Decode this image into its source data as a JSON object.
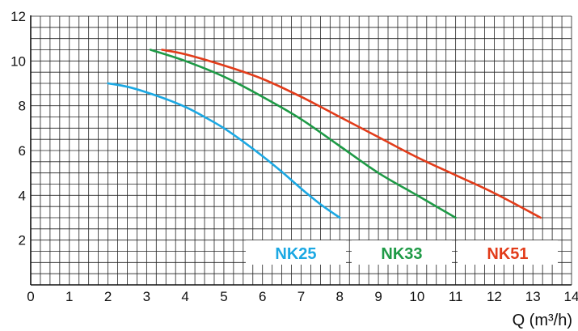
{
  "chart_data": {
    "type": "line",
    "xlabel": "Q (m³/h)",
    "ylabel": "",
    "xlim": [
      0,
      14
    ],
    "ylim": [
      0,
      12
    ],
    "x_ticks": [
      0,
      1,
      2,
      3,
      4,
      5,
      6,
      7,
      8,
      9,
      10,
      11,
      12,
      13,
      14
    ],
    "y_ticks": [
      2,
      4,
      6,
      8,
      10,
      12
    ],
    "minor_grid_x": 0.25,
    "minor_grid_y": 0.5,
    "grid": true,
    "legend": "bottom-right",
    "series": [
      {
        "name": "NK25",
        "color": "#1ba8e3",
        "x": [
          2.0,
          2.5,
          3.0,
          3.5,
          4.0,
          4.5,
          5.0,
          5.5,
          6.0,
          6.5,
          7.0,
          7.5,
          8.0
        ],
        "y": [
          9.0,
          8.85,
          8.6,
          8.3,
          7.95,
          7.5,
          7.0,
          6.4,
          5.75,
          5.05,
          4.3,
          3.6,
          3.0
        ]
      },
      {
        "name": "NK33",
        "color": "#1e9a46",
        "x": [
          3.1,
          4.0,
          5.0,
          6.0,
          7.0,
          8.0,
          9.0,
          10.0,
          11.0
        ],
        "y": [
          10.5,
          10.0,
          9.3,
          8.4,
          7.4,
          6.2,
          5.0,
          4.0,
          3.0
        ]
      },
      {
        "name": "NK51",
        "color": "#e23c1a",
        "x": [
          3.4,
          4.0,
          5.0,
          6.0,
          7.0,
          8.0,
          9.0,
          10.0,
          11.0,
          12.0,
          13.2
        ],
        "y": [
          10.5,
          10.3,
          9.8,
          9.2,
          8.4,
          7.5,
          6.6,
          5.7,
          4.9,
          4.1,
          3.0
        ]
      }
    ]
  }
}
